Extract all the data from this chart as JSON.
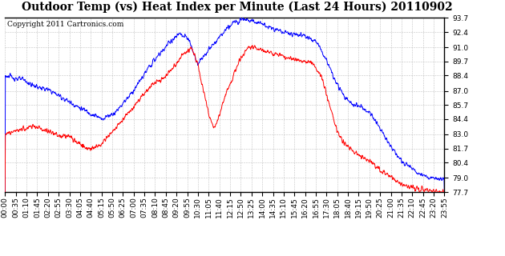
{
  "title": "Outdoor Temp (vs) Heat Index per Minute (Last 24 Hours) 20110902",
  "copyright": "Copyright 2011 Cartronics.com",
  "yticks": [
    77.7,
    79.0,
    80.4,
    81.7,
    83.0,
    84.4,
    85.7,
    87.0,
    88.4,
    89.7,
    91.0,
    92.4,
    93.7
  ],
  "ymin": 77.7,
  "ymax": 93.7,
  "xtick_labels": [
    "00:00",
    "00:35",
    "01:10",
    "01:45",
    "02:20",
    "02:55",
    "03:30",
    "04:05",
    "04:40",
    "05:15",
    "05:50",
    "06:25",
    "07:00",
    "07:35",
    "08:10",
    "08:45",
    "09:20",
    "09:55",
    "10:30",
    "11:05",
    "11:40",
    "12:15",
    "12:50",
    "13:25",
    "14:00",
    "14:35",
    "15:10",
    "15:45",
    "16:20",
    "16:55",
    "17:30",
    "18:05",
    "18:40",
    "19:15",
    "19:50",
    "20:25",
    "21:00",
    "21:35",
    "22:10",
    "22:45",
    "23:20",
    "23:55"
  ],
  "bg_color": "#ffffff",
  "plot_bg": "#ffffff",
  "grid_color": "#bbbbbb",
  "blue_color": "#0000ff",
  "red_color": "#ff0000",
  "title_fontsize": 10,
  "tick_fontsize": 6.5,
  "copyright_fontsize": 6.5
}
